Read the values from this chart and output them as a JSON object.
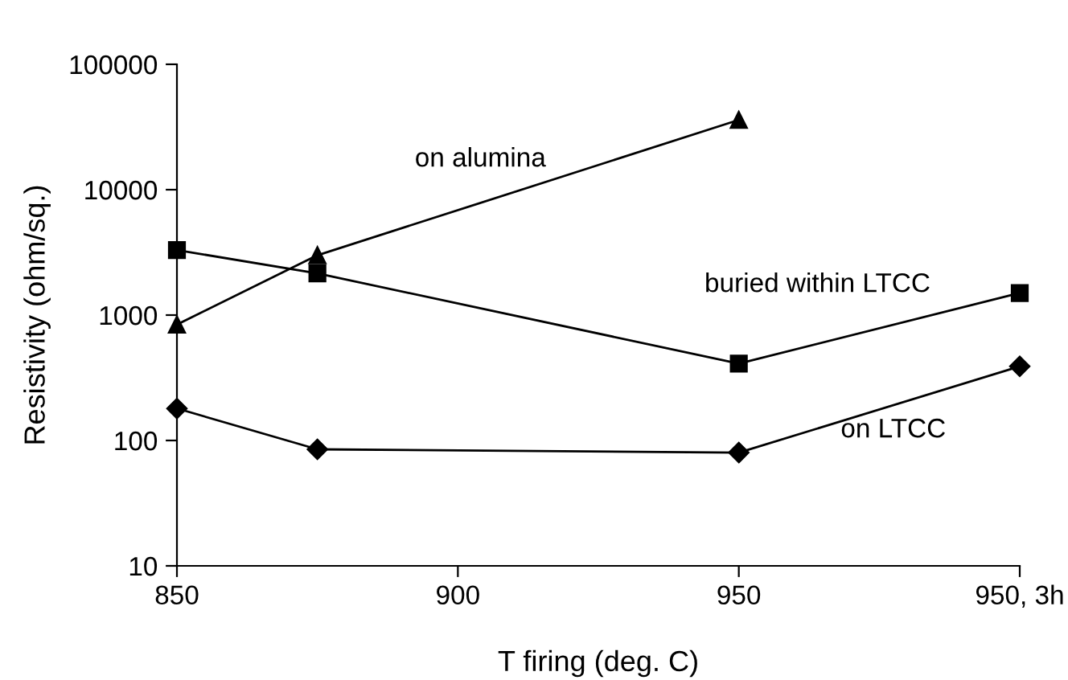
{
  "chart_data": {
    "type": "line",
    "xlabel": "T firing (deg. C)",
    "ylabel": "Resistivity (ohm/sq.)",
    "log": "y",
    "grid": false,
    "xlim": [
      850,
      1000
    ],
    "xticks": [
      850,
      900,
      950,
      {
        "value": 1000,
        "label": "950, 3h"
      }
    ],
    "ylim": [
      10,
      100000
    ],
    "yticks": [
      10,
      100,
      1000,
      10000,
      100000
    ],
    "series": [
      {
        "color": "#000000",
        "marker": "triangle",
        "x": [
          850,
          875,
          950
        ],
        "values": [
          840,
          3000,
          36000
        ]
      },
      {
        "color": "#000000",
        "marker": "square",
        "x": [
          850,
          875,
          950,
          1000
        ],
        "values": [
          3300,
          2150,
          410,
          1500
        ]
      },
      {
        "color": "#000000",
        "marker": "diamond",
        "x": [
          850,
          875,
          950,
          1000
        ],
        "values": [
          180,
          85,
          80,
          390
        ]
      }
    ],
    "annotations": [
      "on alumina",
      "buried within LTCC",
      "on LTCC"
    ]
  }
}
